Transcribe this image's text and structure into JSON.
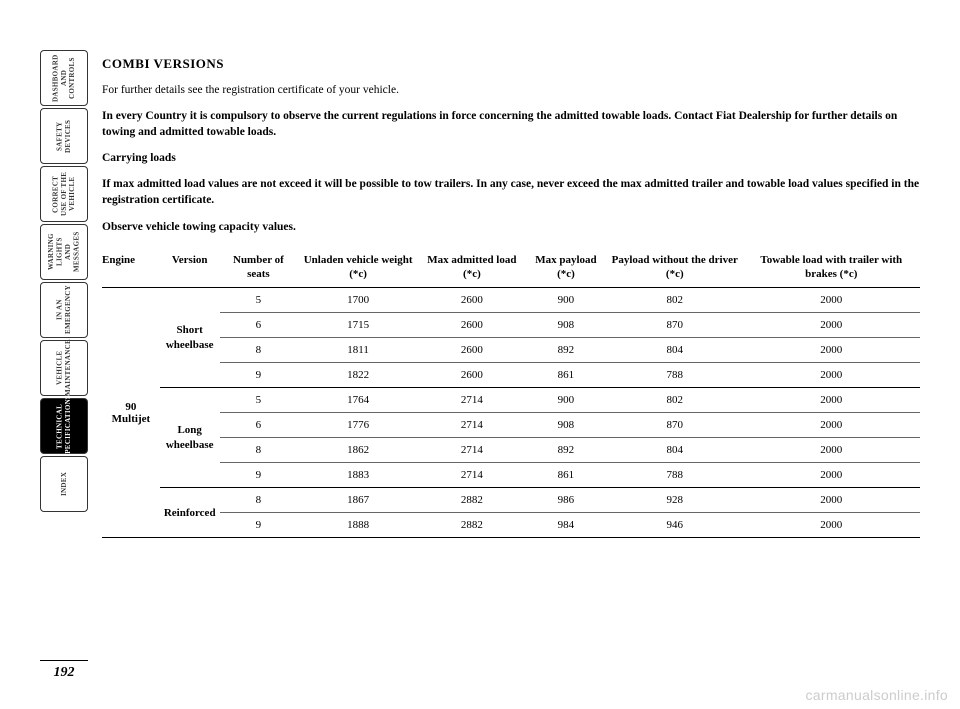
{
  "sidebar": {
    "tabs": [
      {
        "label": "DASHBOARD AND CONTROLS"
      },
      {
        "label": "SAFETY DEVICES"
      },
      {
        "label": "CORRECT USE OF THE VEHICLE"
      },
      {
        "label": "WARNING LIGHTS AND MESSAGES"
      },
      {
        "label": "IN AN EMERGENCY"
      },
      {
        "label": "VEHICLE MAINTENANCE"
      },
      {
        "label": "TECHNICAL SPECIFICATIONS"
      },
      {
        "label": "INDEX"
      }
    ],
    "active_index": 6
  },
  "heading": "COMBI VERSIONS",
  "paragraphs": [
    "For further details see the registration certificate of your vehicle.",
    "In every Country it is compulsory to observe the current regulations in force concerning the admitted towable loads. Contact Fiat Dealership for further details on towing and admitted towable loads.",
    "If max admitted load values are not exceed it will be possible to tow trailers. In any case, never exceed the max admitted trailer and towable load values specified in the registration certificate.",
    "Observe vehicle towing capacity values."
  ],
  "subheading": "Carrying loads",
  "table": {
    "headers": [
      "Engine",
      "Version",
      "Number of seats",
      "Unladen vehicle weight (*c)",
      "Max admitted load (*c)",
      "Max payload (*c)",
      "Payload without the driver (*c)",
      "Towable load with trailer with brakes (*c)"
    ],
    "engine": "90 Multijet",
    "groups": [
      {
        "version": "Short wheelbase",
        "rows": [
          [
            "5",
            "1700",
            "2600",
            "900",
            "802",
            "2000"
          ],
          [
            "6",
            "1715",
            "2600",
            "908",
            "870",
            "2000"
          ],
          [
            "8",
            "1811",
            "2600",
            "892",
            "804",
            "2000"
          ],
          [
            "9",
            "1822",
            "2600",
            "861",
            "788",
            "2000"
          ]
        ]
      },
      {
        "version": "Long wheelbase",
        "rows": [
          [
            "5",
            "1764",
            "2714",
            "900",
            "802",
            "2000"
          ],
          [
            "6",
            "1776",
            "2714",
            "908",
            "870",
            "2000"
          ],
          [
            "8",
            "1862",
            "2714",
            "892",
            "804",
            "2000"
          ],
          [
            "9",
            "1883",
            "2714",
            "861",
            "788",
            "2000"
          ]
        ]
      },
      {
        "version": "Reinforced",
        "rows": [
          [
            "8",
            "1867",
            "2882",
            "986",
            "928",
            "2000"
          ],
          [
            "9",
            "1888",
            "2882",
            "984",
            "946",
            "2000"
          ]
        ]
      }
    ]
  },
  "page_number": "192",
  "watermark": "carmanualsonline.info"
}
